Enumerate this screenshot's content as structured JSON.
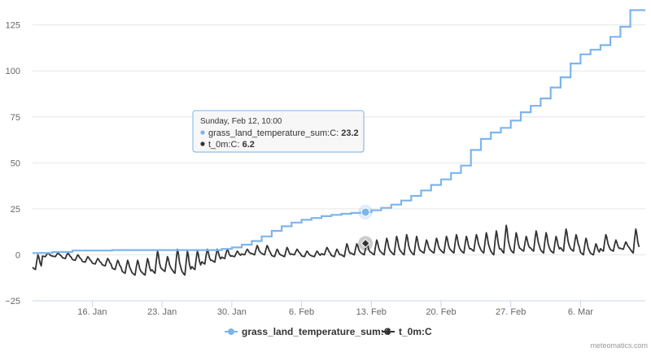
{
  "chart_data": {
    "type": "line",
    "title": "",
    "xlabel": "",
    "ylabel": "",
    "x_range": [
      "2023-01-10",
      "2023-03-12"
    ],
    "ylim": [
      -25,
      135
    ],
    "y_ticks": [
      -25,
      0,
      25,
      50,
      75,
      100,
      125
    ],
    "y_tick_labels": [
      "−25",
      "0",
      "25",
      "50",
      "75",
      "100",
      "125"
    ],
    "x_ticks": [
      "2023-01-16",
      "2023-01-23",
      "2023-01-30",
      "2023-02-06",
      "2023-02-13",
      "2023-02-20",
      "2023-02-27",
      "2023-03-06"
    ],
    "x_tick_labels": [
      "16. Jan",
      "23. Jan",
      "30. Jan",
      "6. Feb",
      "13. Feb",
      "20. Feb",
      "27. Feb",
      "6. Mar"
    ],
    "grid": true,
    "legend_position": "bottom-center",
    "series": [
      {
        "name": "grass_land_temperature_sum:C",
        "color": "#7cb5ec",
        "marker": "circle",
        "step": true,
        "points": [
          [
            "2023-01-10",
            1.0
          ],
          [
            "2023-01-12",
            1.5
          ],
          [
            "2023-01-14",
            2.3
          ],
          [
            "2023-01-18",
            2.6
          ],
          [
            "2023-01-27",
            2.6
          ],
          [
            "2023-01-29",
            3.2
          ],
          [
            "2023-01-30",
            4.0
          ],
          [
            "2023-01-31",
            5.5
          ],
          [
            "2023-02-01",
            7.5
          ],
          [
            "2023-02-02",
            10.0
          ],
          [
            "2023-02-03",
            13.0
          ],
          [
            "2023-02-04",
            15.5
          ],
          [
            "2023-02-05",
            17.5
          ],
          [
            "2023-02-06",
            19.0
          ],
          [
            "2023-02-07",
            20.0
          ],
          [
            "2023-02-08",
            21.0
          ],
          [
            "2023-02-09",
            21.7
          ],
          [
            "2023-02-10",
            22.3
          ],
          [
            "2023-02-11",
            22.8
          ],
          [
            "2023-02-12",
            23.2
          ],
          [
            "2023-02-13",
            24.2
          ],
          [
            "2023-02-14",
            25.5
          ],
          [
            "2023-02-15",
            27.3
          ],
          [
            "2023-02-16",
            29.5
          ],
          [
            "2023-02-17",
            32.0
          ],
          [
            "2023-02-18",
            35.0
          ],
          [
            "2023-02-19",
            38.0
          ],
          [
            "2023-02-20",
            41.0
          ],
          [
            "2023-02-21",
            44.5
          ],
          [
            "2023-02-22",
            48.5
          ],
          [
            "2023-02-23",
            57.0
          ],
          [
            "2023-02-24",
            63.0
          ],
          [
            "2023-02-25",
            66.5
          ],
          [
            "2023-02-26",
            69.0
          ],
          [
            "2023-02-27",
            73.0
          ],
          [
            "2023-02-28",
            77.5
          ],
          [
            "2023-03-01",
            81.0
          ],
          [
            "2023-03-02",
            85.0
          ],
          [
            "2023-03-03",
            91.0
          ],
          [
            "2023-03-04",
            96.5
          ],
          [
            "2023-03-05",
            104.0
          ],
          [
            "2023-03-06",
            109.0
          ],
          [
            "2023-03-07",
            111.5
          ],
          [
            "2023-03-08",
            114.0
          ],
          [
            "2023-03-09",
            118.5
          ],
          [
            "2023-03-10",
            124.0
          ],
          [
            "2023-03-11",
            133.0
          ]
        ]
      },
      {
        "name": "t_0m:C",
        "color": "#333333",
        "marker": "diamond",
        "step": false,
        "daily_extremes": [
          [
            "2023-01-10",
            -8,
            0
          ],
          [
            "2023-01-11",
            -1,
            1
          ],
          [
            "2023-01-12",
            -1,
            1
          ],
          [
            "2023-01-13",
            -2,
            1
          ],
          [
            "2023-01-14",
            -3,
            0
          ],
          [
            "2023-01-15",
            -4,
            -1
          ],
          [
            "2023-01-16",
            -5,
            -2
          ],
          [
            "2023-01-17",
            -6,
            -2
          ],
          [
            "2023-01-18",
            -8,
            -3
          ],
          [
            "2023-01-19",
            -10,
            -3
          ],
          [
            "2023-01-20",
            -11,
            -3
          ],
          [
            "2023-01-21",
            -11,
            -2
          ],
          [
            "2023-01-22",
            -10,
            2
          ],
          [
            "2023-01-23",
            -9,
            -1
          ],
          [
            "2023-01-24",
            -10,
            3
          ],
          [
            "2023-01-25",
            -11,
            2
          ],
          [
            "2023-01-26",
            -8,
            2
          ],
          [
            "2023-01-27",
            -5,
            3
          ],
          [
            "2023-01-28",
            -4,
            3
          ],
          [
            "2023-01-29",
            -2,
            3
          ],
          [
            "2023-01-30",
            -1,
            2
          ],
          [
            "2023-01-31",
            0,
            3
          ],
          [
            "2023-02-01",
            0,
            5
          ],
          [
            "2023-02-02",
            0,
            5
          ],
          [
            "2023-02-03",
            -1,
            3
          ],
          [
            "2023-02-04",
            -1,
            4
          ],
          [
            "2023-02-05",
            0,
            3
          ],
          [
            "2023-02-06",
            -1,
            2
          ],
          [
            "2023-02-07",
            -1,
            2
          ],
          [
            "2023-02-08",
            0,
            4
          ],
          [
            "2023-02-09",
            -1,
            3
          ],
          [
            "2023-02-10",
            -1,
            6
          ],
          [
            "2023-02-11",
            0,
            6
          ],
          [
            "2023-02-12",
            0,
            6.2
          ],
          [
            "2023-02-13",
            0,
            8
          ],
          [
            "2023-02-14",
            0,
            9
          ],
          [
            "2023-02-15",
            0,
            10
          ],
          [
            "2023-02-16",
            0,
            11
          ],
          [
            "2023-02-17",
            0,
            10
          ],
          [
            "2023-02-18",
            1,
            8
          ],
          [
            "2023-02-19",
            1,
            9
          ],
          [
            "2023-02-20",
            1,
            10
          ],
          [
            "2023-02-21",
            1,
            11
          ],
          [
            "2023-02-22",
            1,
            10
          ],
          [
            "2023-02-23",
            2,
            11
          ],
          [
            "2023-02-24",
            1,
            12
          ],
          [
            "2023-02-25",
            0,
            13
          ],
          [
            "2023-02-26",
            1,
            16
          ],
          [
            "2023-02-27",
            1,
            12
          ],
          [
            "2023-02-28",
            2,
            10
          ],
          [
            "2023-03-01",
            2,
            13
          ],
          [
            "2023-03-02",
            1,
            12
          ],
          [
            "2023-03-03",
            1,
            10
          ],
          [
            "2023-03-04",
            2,
            14
          ],
          [
            "2023-03-05",
            2,
            11
          ],
          [
            "2023-03-06",
            0,
            9
          ],
          [
            "2023-03-07",
            0,
            6
          ],
          [
            "2023-03-08",
            2,
            11
          ],
          [
            "2023-03-09",
            2,
            8
          ],
          [
            "2023-03-10",
            3,
            7
          ],
          [
            "2023-03-11",
            1,
            14
          ]
        ]
      }
    ],
    "tooltip": {
      "title": "Sunday, Feb 12, 10:00",
      "rows": [
        {
          "label": "grass_land_temperature_sum:C: ",
          "value": "23.2",
          "color": "#7cb5ec"
        },
        {
          "label": "t_0m:C: ",
          "value": "6.2",
          "color": "#333333"
        }
      ],
      "time": "2023-02-12T10:00"
    },
    "credit": "meteomatics.com"
  }
}
